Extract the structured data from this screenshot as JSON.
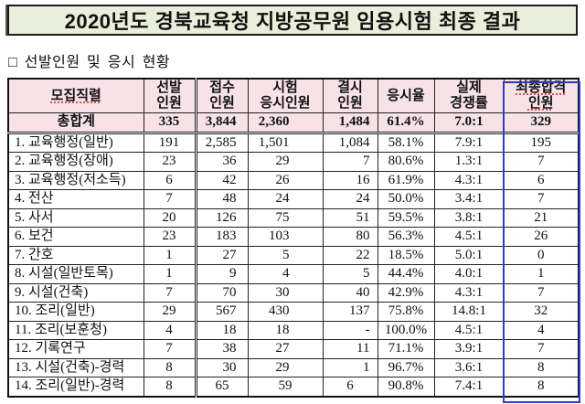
{
  "title": "2020년도 경북교육청 지방공무원 임용시험 최종 결과",
  "subtitle": "□ 선발인원 및 응시 현황",
  "colors": {
    "banner_bg": "#E9EFDB",
    "header_bg": "#F6E2E7",
    "highlight_border": "#2F3BC8",
    "spellcheck_underline": "#CC2222",
    "table_border": "#222222"
  },
  "table": {
    "headers": {
      "category": {
        "line1": "모집직렬",
        "line2": ""
      },
      "selected": {
        "line1": "선발",
        "line2": "인원"
      },
      "applied": {
        "line1": "접수",
        "line2": "인원"
      },
      "taken": {
        "line1": "시험",
        "line2": "응시인원"
      },
      "absent": {
        "line1": "결시",
        "line2": "인원"
      },
      "rate": {
        "line1": "응시율",
        "line2": ""
      },
      "competition": {
        "line1": "실제",
        "line2": "경쟁률"
      },
      "final": {
        "line1": "최종합격",
        "line2": "인원"
      }
    },
    "rows": [
      {
        "label": "총합계",
        "is_total": true,
        "values": [
          "335",
          "3,844",
          "2,360",
          "1,484",
          "61.4%",
          "7.0:1",
          "329"
        ]
      },
      {
        "label": "1. 교육행정(일반)",
        "values": [
          "191",
          "2,585",
          "1,501",
          "1,084",
          "58.1%",
          "7.9:1",
          "195"
        ]
      },
      {
        "label": "2. 교육행정(장애)",
        "values": [
          "23",
          "36",
          "29",
          "7",
          "80.6%",
          "1.3:1",
          "7"
        ]
      },
      {
        "label": "3. 교육행정(저소득)",
        "values": [
          "6",
          "42",
          "26",
          "16",
          "61.9%",
          "4.3:1",
          "6"
        ]
      },
      {
        "label": "4. 전산",
        "values": [
          "7",
          "48",
          "24",
          "24",
          "50.0%",
          "3.4:1",
          "7"
        ]
      },
      {
        "label": "5. 사서",
        "values": [
          "20",
          "126",
          "75",
          "51",
          "59.5%",
          "3.8:1",
          "21"
        ]
      },
      {
        "label": "6. 보건",
        "values": [
          "23",
          "183",
          "103",
          "80",
          "56.3%",
          "4.5:1",
          "26"
        ]
      },
      {
        "label": "7. 간호",
        "values": [
          "1",
          "27",
          "5",
          "22",
          "18.5%",
          "5.0:1",
          "0"
        ]
      },
      {
        "label": "8. 시설(일반토목)",
        "values": [
          "1",
          "9",
          "4",
          "5",
          "44.4%",
          "4.0:1",
          "1"
        ]
      },
      {
        "label": "9. 시설(건축)",
        "values": [
          "7",
          "70",
          "30",
          "40",
          "42.9%",
          "4.3:1",
          "7"
        ]
      },
      {
        "label": "10. 조리(일반)",
        "values": [
          "29",
          "567",
          "430",
          "137",
          "75.8%",
          "14.8:1",
          "32"
        ]
      },
      {
        "label": "11. 조리(보훈청)",
        "values": [
          "4",
          "18",
          "18",
          "-",
          "100.0%",
          "4.5:1",
          "4"
        ]
      },
      {
        "label": "12. 기록연구",
        "values": [
          "7",
          "38",
          "27",
          "11",
          "71.1%",
          "3.9:1",
          "7"
        ]
      },
      {
        "label": "13. 시설(건축)-경력",
        "values": [
          "8",
          "30",
          "29",
          "1",
          "96.7%",
          "3.6:1",
          "8"
        ]
      },
      {
        "label": "14. 조리(일반)-경력",
        "center_numbers": true,
        "values": [
          "8",
          "65",
          "59",
          "6",
          "90.8%",
          "7.4:1",
          "8"
        ]
      }
    ]
  }
}
